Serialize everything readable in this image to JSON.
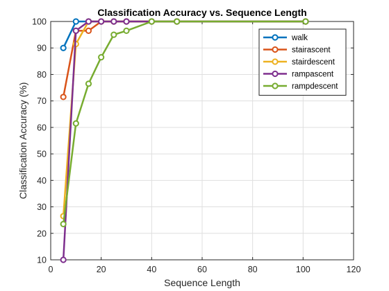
{
  "chart_data": {
    "type": "line",
    "title": "Classification Accuracy vs. Sequence Length",
    "xlabel": "Sequence Length",
    "ylabel": "Classification Accuracy (%)",
    "xlim": [
      0,
      120
    ],
    "ylim": [
      10,
      100
    ],
    "xticks": [
      0,
      20,
      40,
      60,
      80,
      100,
      120
    ],
    "yticks": [
      10,
      20,
      30,
      40,
      50,
      60,
      70,
      80,
      90,
      100
    ],
    "grid": true,
    "legend_position": "top-right",
    "series": [
      {
        "name": "walk",
        "color": "#0072BD",
        "x": [
          5,
          10,
          15,
          20,
          25,
          30,
          40,
          50,
          101
        ],
        "y": [
          90,
          100,
          100,
          100,
          100,
          100,
          100,
          100,
          100
        ]
      },
      {
        "name": "stairascent",
        "color": "#D95319",
        "x": [
          5,
          10,
          15,
          20,
          25,
          30,
          40,
          50,
          101
        ],
        "y": [
          71.5,
          96.5,
          96.5,
          100,
          100,
          100,
          100,
          100,
          100
        ]
      },
      {
        "name": "stairdescent",
        "color": "#EDB120",
        "x": [
          5,
          10,
          15,
          20,
          25,
          30,
          40,
          50,
          101
        ],
        "y": [
          26.5,
          91.5,
          100,
          100,
          100,
          100,
          100,
          100,
          100
        ]
      },
      {
        "name": "rampascent",
        "color": "#7E2F8E",
        "x": [
          5,
          10,
          15,
          20,
          25,
          30,
          40,
          50,
          101
        ],
        "y": [
          10,
          96.5,
          100,
          100,
          100,
          100,
          100,
          100,
          100
        ]
      },
      {
        "name": "rampdescent",
        "color": "#77AC30",
        "x": [
          5,
          10,
          15,
          20,
          25,
          30,
          40,
          50,
          101
        ],
        "y": [
          23.5,
          61.5,
          76.5,
          86.5,
          95,
          96.5,
          100,
          100,
          100
        ]
      }
    ]
  }
}
